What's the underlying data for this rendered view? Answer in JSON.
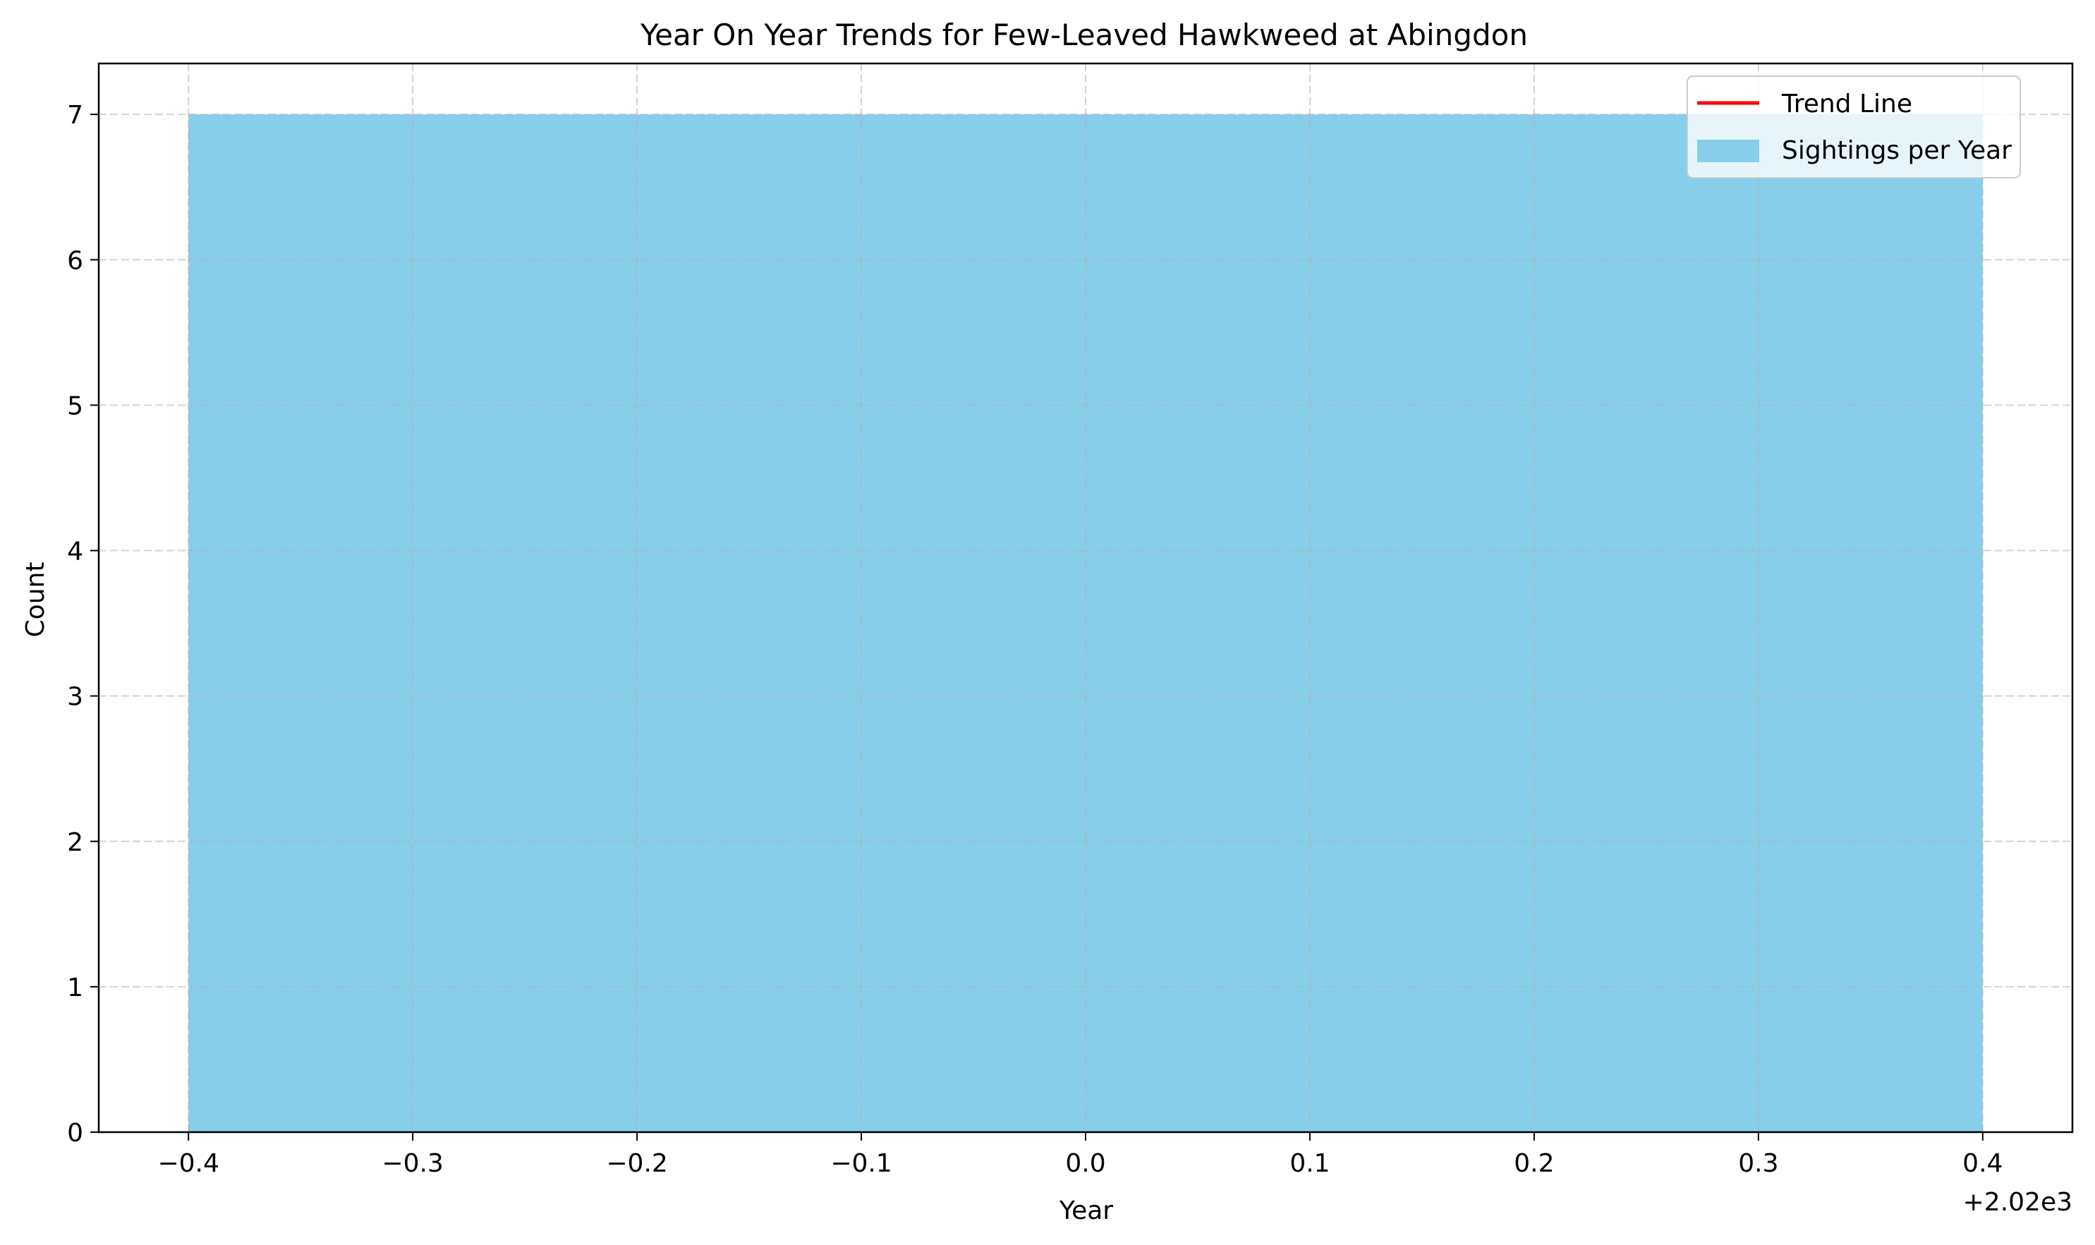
{
  "chart_data": {
    "type": "bar",
    "title": "Year On Year Trends for Few-Leaved Hawkweed at Abingdon",
    "xlabel": "Year",
    "ylabel": "Count",
    "x_offset_text": "+2.02e3",
    "x_offset": 2020,
    "xlim": [
      2019.56,
      2020.44
    ],
    "ylim": [
      0,
      7.35
    ],
    "x_ticks": [
      2019.6,
      2019.7,
      2019.8,
      2019.9,
      2020.0,
      2020.1,
      2020.2,
      2020.3,
      2020.4
    ],
    "x_tick_labels": [
      "−0.4",
      "−0.3",
      "−0.2",
      "−0.1",
      "0.0",
      "0.1",
      "0.2",
      "0.3",
      "0.4"
    ],
    "y_ticks": [
      0,
      1,
      2,
      3,
      4,
      5,
      6,
      7
    ],
    "y_tick_labels": [
      "0",
      "1",
      "2",
      "3",
      "4",
      "5",
      "6",
      "7"
    ],
    "grid": true,
    "legend_position": "top-right",
    "series": [
      {
        "name": "Sightings per Year",
        "kind": "bar",
        "color": "#87CEEB",
        "x": [
          2020
        ],
        "values": [
          7
        ],
        "bar_width": 0.8
      },
      {
        "name": "Trend Line",
        "kind": "line",
        "color": "#ff0000",
        "x": [
          2020
        ],
        "values": [
          7
        ]
      }
    ],
    "legend": [
      {
        "label": "Trend Line",
        "kind": "line",
        "color": "#ff0000"
      },
      {
        "label": "Sightings per Year",
        "kind": "patch",
        "color": "#87CEEB"
      }
    ]
  }
}
